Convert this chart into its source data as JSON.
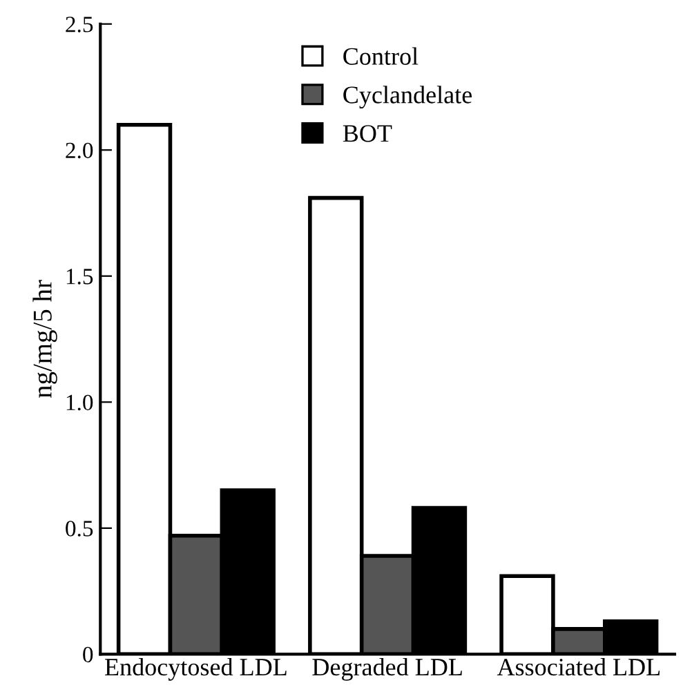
{
  "chart_data": {
    "type": "bar",
    "ylabel": "ng/mg/5 hr",
    "categories": [
      "Endocytosed LDL",
      "Degraded LDL",
      "Associated LDL"
    ],
    "series": [
      {
        "name": "Control",
        "color": "#ffffff",
        "values": [
          2.1,
          1.81,
          0.31
        ]
      },
      {
        "name": "Cyclandelate",
        "color": "#555555",
        "values": [
          0.47,
          0.39,
          0.1
        ]
      },
      {
        "name": "BOT",
        "color": "#000000",
        "values": [
          0.65,
          0.58,
          0.13
        ]
      }
    ],
    "ylim": [
      0,
      2.5
    ],
    "yticks": [
      0,
      0.5,
      {
        "value": 1.0,
        "label": "1.0"
      },
      1.5,
      {
        "value": 2.0,
        "label": "2.0"
      },
      2.5
    ],
    "grid": false,
    "legend": "top"
  }
}
